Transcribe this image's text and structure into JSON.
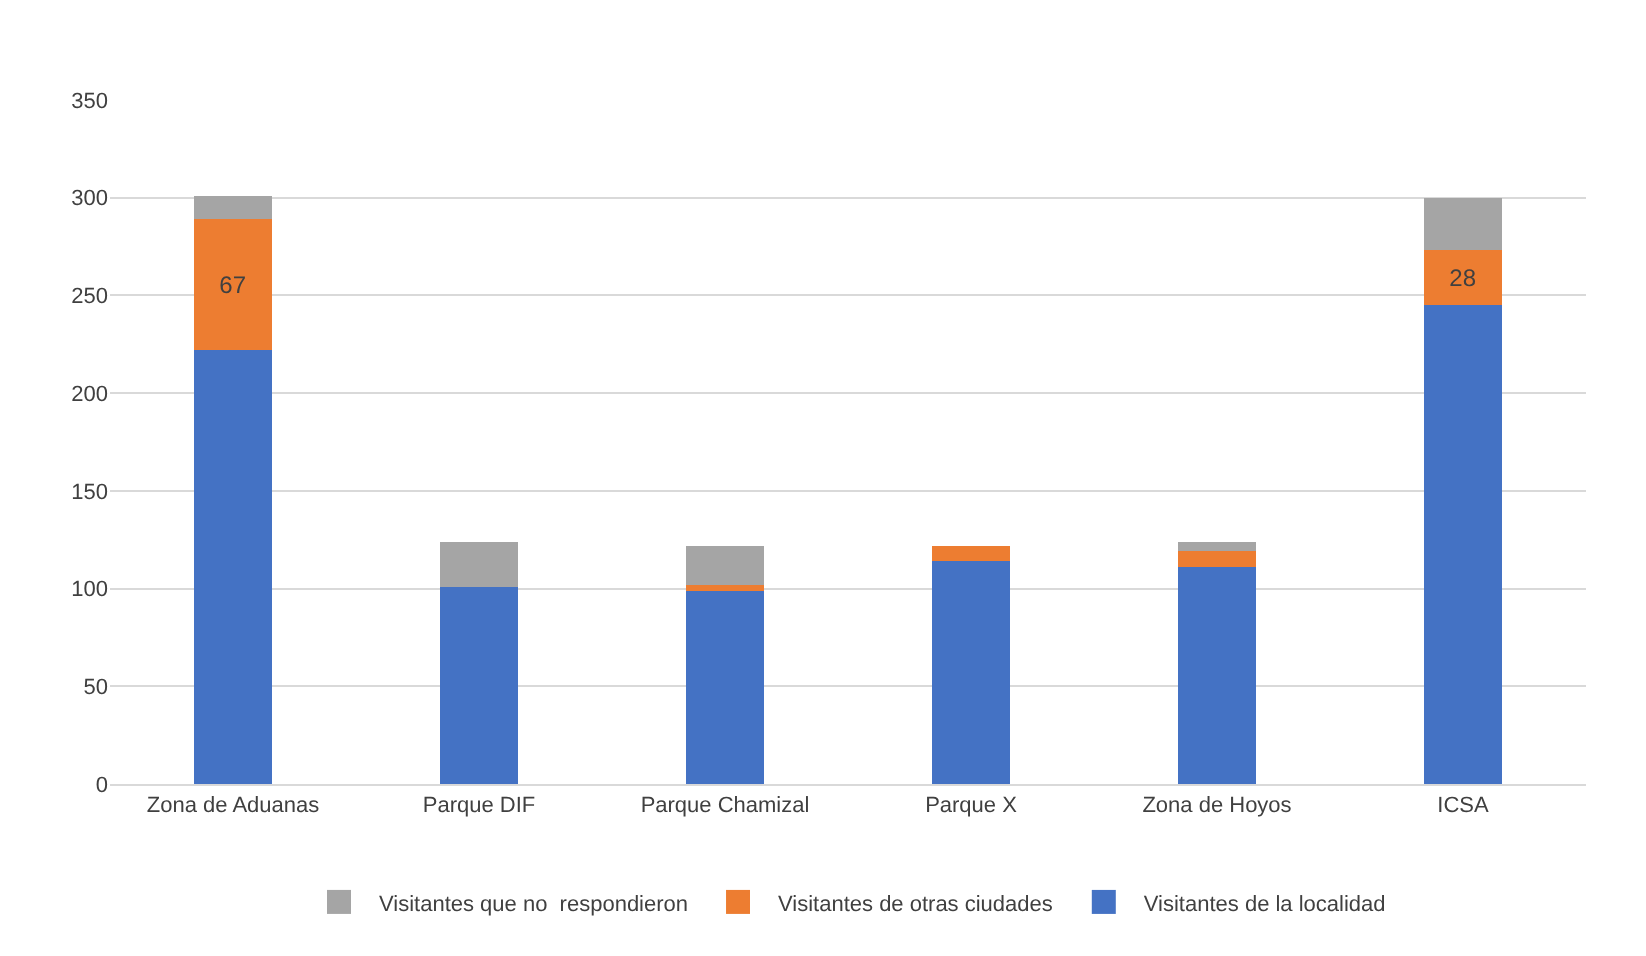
{
  "chart_data": {
    "type": "bar",
    "stacked": true,
    "categories": [
      "Zona de Aduanas",
      "Parque DIF",
      "Parque Chamizal",
      "Parque X",
      "Zona de Hoyos",
      "ICSA"
    ],
    "series": [
      {
        "name": "Visitantes de la localidad",
        "color": "#4472c4",
        "values": [
          222,
          101,
          99,
          114,
          111,
          245
        ]
      },
      {
        "name": "Visitantes de otras ciudades",
        "color": "#ed7d31",
        "values": [
          67,
          0,
          3,
          8,
          8,
          28
        ],
        "value_labels": [
          "67",
          null,
          null,
          null,
          null,
          "28"
        ]
      },
      {
        "name": "Visitantes que no  respondieron",
        "color": "#a5a5a5",
        "values": [
          12,
          23,
          20,
          0,
          5,
          27
        ]
      }
    ],
    "ylim": [
      0,
      350
    ],
    "yticks": [
      0,
      50,
      100,
      150,
      200,
      250,
      300,
      350
    ],
    "grid": "y",
    "legend": "bottom"
  }
}
